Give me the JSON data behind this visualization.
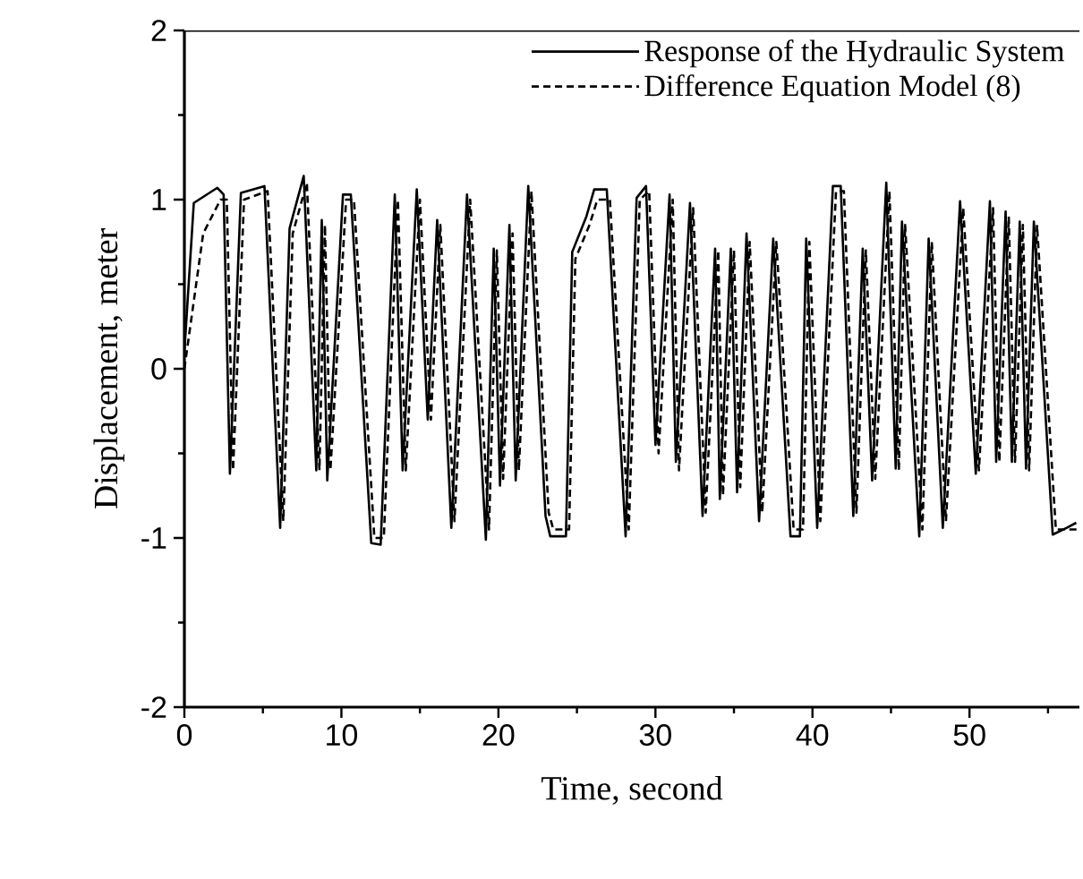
{
  "chart_data": {
    "type": "line",
    "xlabel": "Time, second",
    "ylabel": "Displacement, meter",
    "xlim": [
      0,
      57
    ],
    "ylim": [
      -2,
      2
    ],
    "xticks": [
      0,
      {
        "value": 5,
        "label": null
      },
      10,
      {
        "value": 15,
        "label": null
      },
      20,
      {
        "value": 25,
        "label": null
      },
      30,
      {
        "value": 35,
        "label": null
      },
      40,
      {
        "value": 45,
        "label": null
      },
      50,
      {
        "value": 55,
        "label": null
      }
    ],
    "yticks": [
      -2,
      {
        "value": -1.5,
        "label": null
      },
      -1,
      {
        "value": -0.5,
        "label": null
      },
      0,
      {
        "value": 0.5,
        "label": null
      },
      1,
      {
        "value": 1.5,
        "label": null
      },
      2
    ],
    "legend": "top right",
    "series": [
      {
        "name": "Response of the Hydraulic System",
        "color": "#000000",
        "line_style": "solid",
        "x": [
          0,
          0.6,
          2.1,
          2.5,
          2.9,
          3.6,
          5.1,
          6.1,
          6.7,
          7.6,
          8.4,
          8.75,
          9.1,
          10.1,
          10.6,
          11.9,
          12.5,
          13.4,
          13.9,
          14.8,
          15.5,
          16.1,
          17.0,
          18.0,
          19.2,
          19.7,
          20.1,
          20.7,
          21.1,
          21.9,
          23.0,
          23.3,
          24.3,
          24.7,
          25.6,
          26.1,
          26.9,
          28.1,
          28.8,
          29.4,
          30.0,
          30.9,
          31.3,
          32.2,
          33.0,
          33.8,
          34.1,
          34.8,
          35.2,
          35.8,
          36.6,
          37.5,
          38.6,
          39.2,
          39.6,
          40.3,
          41.3,
          41.8,
          42.6,
          43.2,
          43.8,
          44.7,
          45.3,
          45.7,
          46.8,
          47.4,
          48.3,
          49.4,
          50.4,
          51.3,
          51.7,
          52.3,
          52.7,
          53.2,
          53.6,
          54.1,
          55.3,
          56.2,
          56.8
        ],
        "values": [
          0.1,
          0.98,
          1.07,
          1.03,
          -0.62,
          1.04,
          1.08,
          -0.94,
          0.83,
          1.14,
          -0.6,
          0.88,
          -0.66,
          1.03,
          1.03,
          -1.03,
          -1.04,
          1.03,
          -0.6,
          1.06,
          -0.3,
          0.88,
          -0.94,
          1.03,
          -1.01,
          0.71,
          -0.69,
          0.85,
          -0.66,
          1.08,
          -0.87,
          -0.99,
          -0.99,
          0.69,
          0.9,
          1.06,
          1.06,
          -0.99,
          1.01,
          1.08,
          -0.45,
          1.03,
          -0.55,
          0.98,
          -0.87,
          0.71,
          -0.77,
          0.71,
          -0.73,
          0.8,
          -0.9,
          0.77,
          -0.99,
          -0.99,
          0.77,
          -0.94,
          1.08,
          1.08,
          -0.87,
          0.71,
          -0.66,
          1.1,
          -0.59,
          0.87,
          -0.99,
          0.77,
          -0.94,
          0.99,
          -0.62,
          0.99,
          -0.55,
          0.93,
          -0.55,
          0.87,
          -0.59,
          0.87,
          -0.98,
          -0.94,
          -0.91
        ]
      },
      {
        "name": "Difference Equation Model (8)",
        "color": "#000000",
        "line_style": "dashed",
        "x": [
          0,
          1.2,
          2.3,
          2.7,
          3.1,
          3.8,
          5.3,
          6.3,
          6.9,
          7.8,
          8.6,
          8.95,
          9.3,
          10.3,
          10.8,
          12.1,
          12.7,
          13.6,
          14.1,
          15.0,
          15.7,
          16.3,
          17.2,
          18.2,
          19.4,
          19.9,
          20.3,
          20.9,
          21.3,
          22.1,
          23.2,
          23.5,
          24.5,
          24.9,
          25.8,
          26.3,
          27.1,
          28.3,
          29.0,
          29.6,
          30.2,
          31.1,
          31.5,
          32.4,
          33.2,
          34.0,
          34.3,
          35.0,
          35.4,
          36.0,
          36.8,
          37.7,
          38.8,
          39.4,
          39.8,
          40.5,
          41.5,
          42.0,
          42.8,
          43.4,
          44.0,
          44.9,
          45.5,
          45.9,
          47.0,
          47.6,
          48.5,
          49.6,
          50.6,
          51.5,
          51.9,
          52.5,
          52.9,
          53.4,
          53.8,
          54.3,
          55.5,
          56.4,
          56.9
        ],
        "values": [
          0.0,
          0.8,
          1.0,
          1.0,
          -0.6,
          1.0,
          1.05,
          -0.9,
          0.8,
          1.1,
          -0.6,
          0.85,
          -0.6,
          1.0,
          1.0,
          -1.0,
          -1.0,
          1.0,
          -0.6,
          1.0,
          -0.3,
          0.85,
          -0.9,
          1.0,
          -0.95,
          0.7,
          -0.65,
          0.8,
          -0.6,
          1.05,
          -0.85,
          -0.95,
          -0.95,
          0.65,
          0.85,
          1.0,
          1.0,
          -0.95,
          1.0,
          1.05,
          -0.5,
          1.0,
          -0.6,
          0.95,
          -0.85,
          0.7,
          -0.75,
          0.7,
          -0.7,
          0.75,
          -0.85,
          0.75,
          -0.95,
          -0.95,
          0.75,
          -0.9,
          1.05,
          1.05,
          -0.85,
          0.7,
          -0.65,
          1.05,
          -0.6,
          0.85,
          -0.95,
          0.75,
          -0.9,
          0.95,
          -0.6,
          0.95,
          -0.55,
          0.9,
          -0.55,
          0.85,
          -0.6,
          0.85,
          -0.95,
          -0.95,
          -0.95
        ]
      }
    ]
  }
}
